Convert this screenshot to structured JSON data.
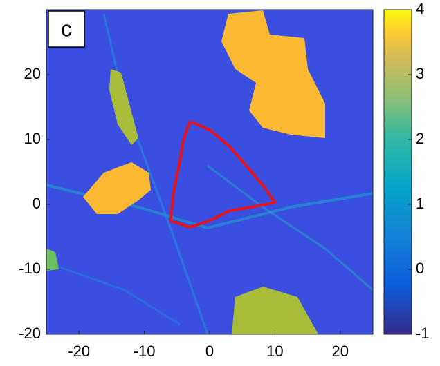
{
  "chart_data": {
    "type": "heatmap",
    "panel_label": "c",
    "xlim": [
      -25,
      25
    ],
    "xticks": [
      -20,
      -10,
      0,
      10,
      20
    ],
    "ylim": [
      -20,
      30
    ],
    "yticks": [
      -20,
      -10,
      0,
      10,
      20
    ],
    "colormap": "parula",
    "clim": [
      -1,
      4
    ],
    "cticks": [
      -1,
      0,
      1,
      2,
      3,
      4
    ],
    "contour": {
      "color": "#e8141c",
      "x": [
        -3,
        0,
        3,
        6,
        8.5,
        10,
        7,
        3,
        0,
        -3,
        -6,
        -5.5,
        -4.5,
        -4,
        -3
      ],
      "y": [
        12.8,
        11.5,
        9,
        5.5,
        2.5,
        0.3,
        -0.3,
        -1,
        -2.5,
        -3.5,
        -2.5,
        2,
        7,
        10,
        12.8
      ]
    }
  }
}
